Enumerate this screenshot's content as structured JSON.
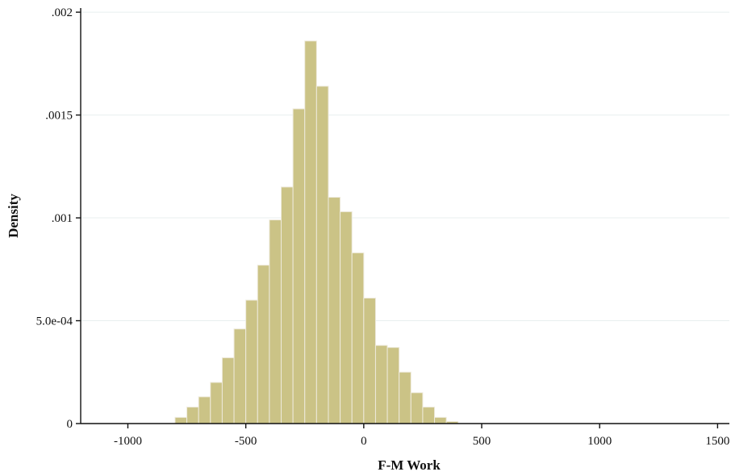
{
  "chart_data": {
    "type": "bar",
    "title": "",
    "xlabel": "F-M Work",
    "ylabel": "Density",
    "xlim": [
      -1200,
      1550
    ],
    "ylim": [
      0,
      0.00202
    ],
    "bin_width": 50,
    "x_ticks": [
      {
        "value": -1000,
        "label": "-1000"
      },
      {
        "value": -500,
        "label": "-500"
      },
      {
        "value": 0,
        "label": "0"
      },
      {
        "value": 500,
        "label": "500"
      },
      {
        "value": 1000,
        "label": "1000"
      },
      {
        "value": 1500,
        "label": "1500"
      }
    ],
    "y_ticks": [
      {
        "value": 0,
        "label": "0"
      },
      {
        "value": 0.0005,
        "label": "5.0e-04"
      },
      {
        "value": 0.001,
        "label": ".001"
      },
      {
        "value": 0.0015,
        "label": ".0015"
      },
      {
        "value": 0.002,
        "label": ".002"
      }
    ],
    "grid": true,
    "bar_color": "#cbc386",
    "bar_edge_color": "#eeeadc",
    "bins": [
      {
        "x0": -800,
        "x1": -750,
        "density": 3e-05
      },
      {
        "x0": -750,
        "x1": -700,
        "density": 8e-05
      },
      {
        "x0": -700,
        "x1": -650,
        "density": 0.00013
      },
      {
        "x0": -650,
        "x1": -600,
        "density": 0.0002
      },
      {
        "x0": -600,
        "x1": -550,
        "density": 0.00032
      },
      {
        "x0": -550,
        "x1": -500,
        "density": 0.00046
      },
      {
        "x0": -500,
        "x1": -450,
        "density": 0.0006
      },
      {
        "x0": -450,
        "x1": -400,
        "density": 0.00077
      },
      {
        "x0": -400,
        "x1": -350,
        "density": 0.00099
      },
      {
        "x0": -350,
        "x1": -300,
        "density": 0.00115
      },
      {
        "x0": -300,
        "x1": -250,
        "density": 0.00153
      },
      {
        "x0": -250,
        "x1": -200,
        "density": 0.00186
      },
      {
        "x0": -200,
        "x1": -150,
        "density": 0.00164
      },
      {
        "x0": -150,
        "x1": -100,
        "density": 0.0011
      },
      {
        "x0": -100,
        "x1": -50,
        "density": 0.00103
      },
      {
        "x0": -50,
        "x1": 0,
        "density": 0.00083
      },
      {
        "x0": 0,
        "x1": 50,
        "density": 0.00061
      },
      {
        "x0": 50,
        "x1": 100,
        "density": 0.00038
      },
      {
        "x0": 100,
        "x1": 150,
        "density": 0.00037
      },
      {
        "x0": 150,
        "x1": 200,
        "density": 0.00025
      },
      {
        "x0": 200,
        "x1": 250,
        "density": 0.00015
      },
      {
        "x0": 250,
        "x1": 300,
        "density": 8e-05
      },
      {
        "x0": 300,
        "x1": 350,
        "density": 3e-05
      },
      {
        "x0": 350,
        "x1": 400,
        "density": 1e-05
      }
    ]
  }
}
